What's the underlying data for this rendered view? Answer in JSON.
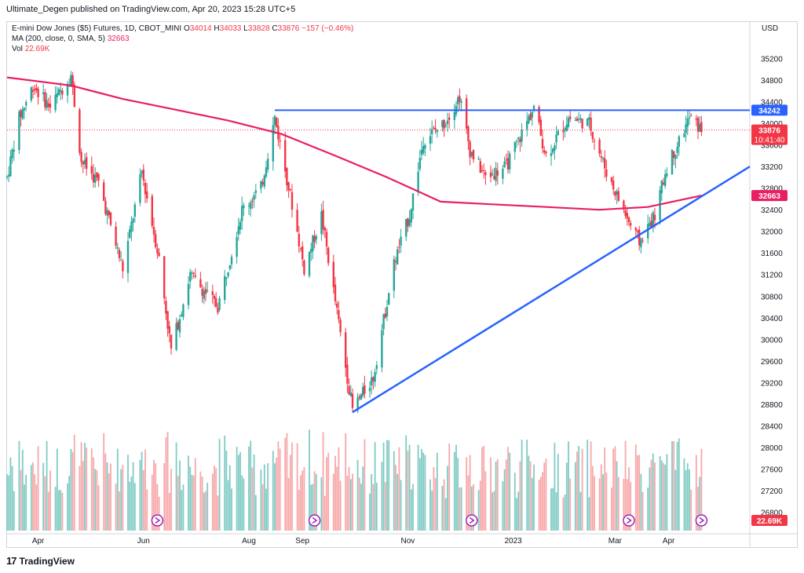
{
  "header": {
    "byline": "Ultimate_Degen published on TradingView.com, Apr 20, 2023 15:28 UTC+5"
  },
  "legend": {
    "symbol": "E-mini Dow Jones ($5) Futures, 1D, CBOT_MINI",
    "o_label": "O",
    "o": "34014",
    "h_label": "H",
    "h": "34033",
    "l_label": "L",
    "l": "33828",
    "c_label": "C",
    "c": "33876",
    "change": "−157 (−0.46%)",
    "ma": "MA (200, close, 0, SMA, 5)",
    "ma_value": "32663",
    "vol_label": "Vol",
    "vol_value": "22.69K"
  },
  "footer": {
    "brand": "TradingView",
    "logo": "17"
  },
  "colors": {
    "up": "#26a69a",
    "down": "#f23645",
    "ma": "#e91e63",
    "trendline": "#2962ff",
    "up_vol": "#80cbc4",
    "down_vol": "#f7a7a9",
    "event_icon": "#9c27b0"
  },
  "chart_data": {
    "type": "candlestick",
    "interval": "1D",
    "currency": "USD",
    "ylim": [
      26400,
      35600
    ],
    "y_ticks": [
      35200,
      34800,
      34400,
      34000,
      33600,
      33200,
      32800,
      32400,
      32000,
      31600,
      31200,
      30800,
      30400,
      30000,
      29600,
      29200,
      28800,
      28400,
      28000,
      27600,
      27200,
      26800
    ],
    "x_tick_labels": [
      "Apr",
      "Jun",
      "Aug",
      "Sep",
      "Nov",
      "2023",
      "Mar",
      "Apr"
    ],
    "x_ticks": [
      "2022-04-01",
      "2022-06-01",
      "2022-08-01",
      "2022-09-01",
      "2022-11-01",
      "2023-01-01",
      "2023-03-01",
      "2023-04-01"
    ],
    "x_range": [
      "2022-03-14",
      "2023-05-18"
    ],
    "price_path": [
      [
        "2022-03-14",
        33000
      ],
      [
        "2022-03-21",
        34100
      ],
      [
        "2022-03-29",
        34700
      ],
      [
        "2022-04-08",
        34300
      ],
      [
        "2022-04-20",
        34900
      ],
      [
        "2022-04-26",
        33300
      ],
      [
        "2022-05-06",
        32900
      ],
      [
        "2022-05-20",
        31300
      ],
      [
        "2022-05-31",
        33100
      ],
      [
        "2022-06-10",
        31500
      ],
      [
        "2022-06-17",
        29800
      ],
      [
        "2022-06-28",
        31200
      ],
      [
        "2022-07-14",
        30600
      ],
      [
        "2022-07-28",
        32400
      ],
      [
        "2022-08-08",
        32800
      ],
      [
        "2022-08-16",
        34100
      ],
      [
        "2022-08-26",
        32500
      ],
      [
        "2022-09-02",
        31300
      ],
      [
        "2022-09-12",
        32300
      ],
      [
        "2022-09-20",
        30700
      ],
      [
        "2022-09-30",
        28700
      ],
      [
        "2022-10-12",
        29300
      ],
      [
        "2022-10-24",
        31400
      ],
      [
        "2022-11-02",
        32300
      ],
      [
        "2022-11-10",
        33700
      ],
      [
        "2022-11-22",
        34000
      ],
      [
        "2022-12-01",
        34500
      ],
      [
        "2022-12-07",
        33500
      ],
      [
        "2022-12-16",
        33000
      ],
      [
        "2022-12-28",
        33200
      ],
      [
        "2023-01-13",
        34300
      ],
      [
        "2023-01-20",
        33400
      ],
      [
        "2023-02-02",
        34100
      ],
      [
        "2023-02-14",
        34000
      ],
      [
        "2023-02-24",
        33100
      ],
      [
        "2023-03-10",
        32100
      ],
      [
        "2023-03-15",
        31800
      ],
      [
        "2023-03-24",
        32300
      ],
      [
        "2023-03-31",
        33200
      ],
      [
        "2023-04-06",
        33600
      ],
      [
        "2023-04-13",
        34100
      ],
      [
        "2023-04-20",
        33876
      ]
    ],
    "ma_200": [
      [
        "2022-03-14",
        34850
      ],
      [
        "2022-04-20",
        34700
      ],
      [
        "2022-05-20",
        34450
      ],
      [
        "2022-06-20",
        34250
      ],
      [
        "2022-07-20",
        34050
      ],
      [
        "2022-08-20",
        33800
      ],
      [
        "2022-09-20",
        33400
      ],
      [
        "2022-10-20",
        33000
      ],
      [
        "2022-11-20",
        32550
      ],
      [
        "2022-12-20",
        32500
      ],
      [
        "2023-01-20",
        32450
      ],
      [
        "2023-02-20",
        32400
      ],
      [
        "2023-03-20",
        32450
      ],
      [
        "2023-04-20",
        32663
      ]
    ],
    "horizontal_line": {
      "value": 34242,
      "from": "2022-08-16",
      "to": "2023-05-18"
    },
    "trendline": {
      "from": [
        "2022-09-30",
        28650
      ],
      "to": [
        "2023-05-18",
        33200
      ]
    },
    "volume": {
      "last_value": "22.69K"
    },
    "price_labels": [
      {
        "text": "34242",
        "value": 34242,
        "color": "#2962ff"
      },
      {
        "text": "33876",
        "value": 33876,
        "color": "#f23645",
        "sub": "10:41:40"
      },
      {
        "text": "32663",
        "value": 32663,
        "color": "#e91e63"
      }
    ],
    "volume_label": {
      "text": "22.69K",
      "color": "#f23645"
    },
    "event_markers": [
      "2022-06-09",
      "2022-09-08",
      "2022-12-08",
      "2023-03-09",
      "2023-04-20"
    ]
  }
}
